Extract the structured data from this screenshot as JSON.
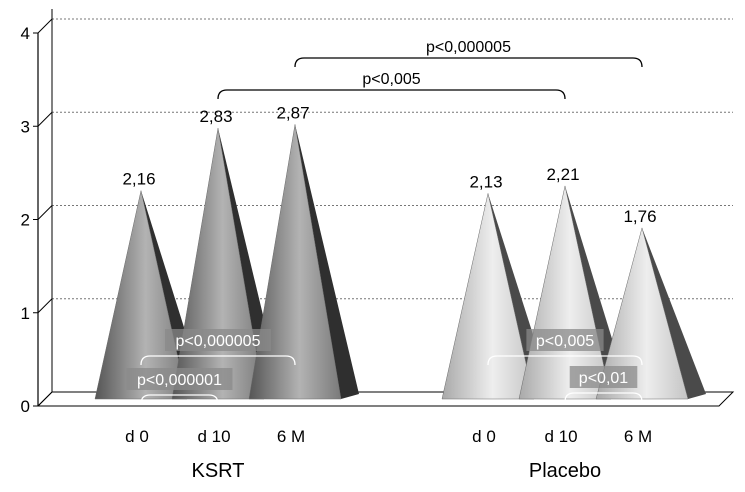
{
  "chart_data": {
    "type": "bar",
    "ylim": [
      0,
      4
    ],
    "yticks": [
      0,
      1,
      2,
      3,
      4
    ],
    "grid": true,
    "groups": [
      {
        "label": "KSRT",
        "categories": [
          "d 0",
          "d 10",
          "6 M"
        ],
        "values": [
          2.16,
          2.83,
          2.87
        ],
        "value_labels": [
          "2,16",
          "2,83",
          "2,87"
        ],
        "color": "#8c8c8c"
      },
      {
        "label": "Placebo",
        "categories": [
          "d 0",
          "d 10",
          "6 M"
        ],
        "values": [
          2.13,
          2.21,
          1.76
        ],
        "value_labels": [
          "2,13",
          "2,21",
          "1,76"
        ],
        "color": "#cfcfcf"
      }
    ],
    "comparisons": [
      {
        "label": "p<0,000005",
        "from": [
          "KSRT",
          "6 M"
        ],
        "to": [
          "Placebo",
          "6 M"
        ]
      },
      {
        "label": "p<0,005",
        "from": [
          "KSRT",
          "d 10"
        ],
        "to": [
          "Placebo",
          "d 10"
        ]
      },
      {
        "label": "p<0,000005",
        "from": [
          "KSRT",
          "d 0"
        ],
        "to": [
          "KSRT",
          "6 M"
        ]
      },
      {
        "label": "p<0,000001",
        "from": [
          "KSRT",
          "d 0"
        ],
        "to": [
          "KSRT",
          "d 10"
        ]
      },
      {
        "label": "p<0,005",
        "from": [
          "Placebo",
          "d 0"
        ],
        "to": [
          "Placebo",
          "6 M"
        ]
      },
      {
        "label": "p<0,01",
        "from": [
          "Placebo",
          "d 10"
        ],
        "to": [
          "Placebo",
          "6 M"
        ]
      }
    ]
  }
}
